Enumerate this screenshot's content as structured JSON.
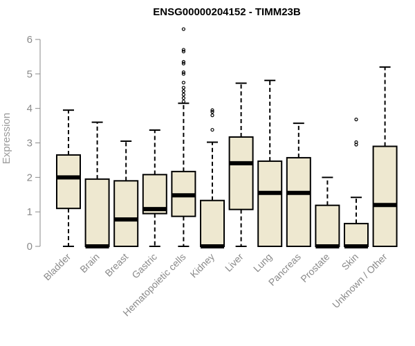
{
  "chart_data": {
    "type": "boxplot",
    "title": "ENSG00000204152 - TIMM23B",
    "xlabel": "",
    "ylabel": "Expression",
    "ylim": [
      0,
      6
    ],
    "yticks": [
      0,
      1,
      2,
      3,
      4,
      5,
      6
    ],
    "categories": [
      "Bladder",
      "Brain",
      "Breast",
      "Gastric",
      "Hematopoietic cells",
      "Kidney",
      "Liver",
      "Lung",
      "Pancreas",
      "Prostate",
      "Skin",
      "Unknown / Other"
    ],
    "boxes": [
      {
        "name": "Bladder",
        "whisker_low": 0.0,
        "q1": 1.1,
        "median": 2.0,
        "q3": 2.65,
        "whisker_high": 3.95,
        "outliers": []
      },
      {
        "name": "Brain",
        "whisker_low": 0.0,
        "q1": 0.0,
        "median": 0.0,
        "q3": 1.95,
        "whisker_high": 3.6,
        "outliers": []
      },
      {
        "name": "Breast",
        "whisker_low": 0.0,
        "q1": 0.0,
        "median": 0.78,
        "q3": 1.9,
        "whisker_high": 3.05,
        "outliers": []
      },
      {
        "name": "Gastric",
        "whisker_low": 0.0,
        "q1": 0.95,
        "median": 1.08,
        "q3": 2.08,
        "whisker_high": 3.37,
        "outliers": []
      },
      {
        "name": "Hematopoietic cells",
        "whisker_low": 0.0,
        "q1": 0.87,
        "median": 1.48,
        "q3": 2.17,
        "whisker_high": 4.15,
        "outliers": [
          4.2,
          4.3,
          4.4,
          4.5,
          4.6,
          4.75,
          5.0,
          5.05,
          5.3,
          5.35,
          5.65,
          5.7,
          6.3
        ]
      },
      {
        "name": "Kidney",
        "whisker_low": 0.0,
        "q1": 0.0,
        "median": 0.0,
        "q3": 1.33,
        "whisker_high": 3.02,
        "outliers": [
          3.38,
          3.8,
          3.9,
          3.95
        ]
      },
      {
        "name": "Liver",
        "whisker_low": 0.0,
        "q1": 1.07,
        "median": 2.41,
        "q3": 3.17,
        "whisker_high": 4.73,
        "outliers": []
      },
      {
        "name": "Lung",
        "whisker_low": 0.0,
        "q1": 0.0,
        "median": 1.55,
        "q3": 2.47,
        "whisker_high": 4.81,
        "outliers": []
      },
      {
        "name": "Pancreas",
        "whisker_low": 0.0,
        "q1": 0.0,
        "median": 1.55,
        "q3": 2.57,
        "whisker_high": 3.57,
        "outliers": []
      },
      {
        "name": "Prostate",
        "whisker_low": 0.0,
        "q1": 0.0,
        "median": 0.0,
        "q3": 1.19,
        "whisker_high": 2.0,
        "outliers": []
      },
      {
        "name": "Skin",
        "whisker_low": 0.0,
        "q1": 0.0,
        "median": 0.0,
        "q3": 0.66,
        "whisker_high": 1.42,
        "outliers": [
          2.95,
          3.02,
          3.68
        ]
      },
      {
        "name": "Unknown / Other",
        "whisker_low": 0.0,
        "q1": 0.0,
        "median": 1.2,
        "q3": 2.9,
        "whisker_high": 5.2,
        "outliers": []
      }
    ],
    "grid": false,
    "legend": "none",
    "colors": {
      "box_fill": "#EEE8D0",
      "box_stroke": "#000000",
      "axis": "#8a8a8a",
      "axis_text": "#8a8a8a"
    }
  }
}
